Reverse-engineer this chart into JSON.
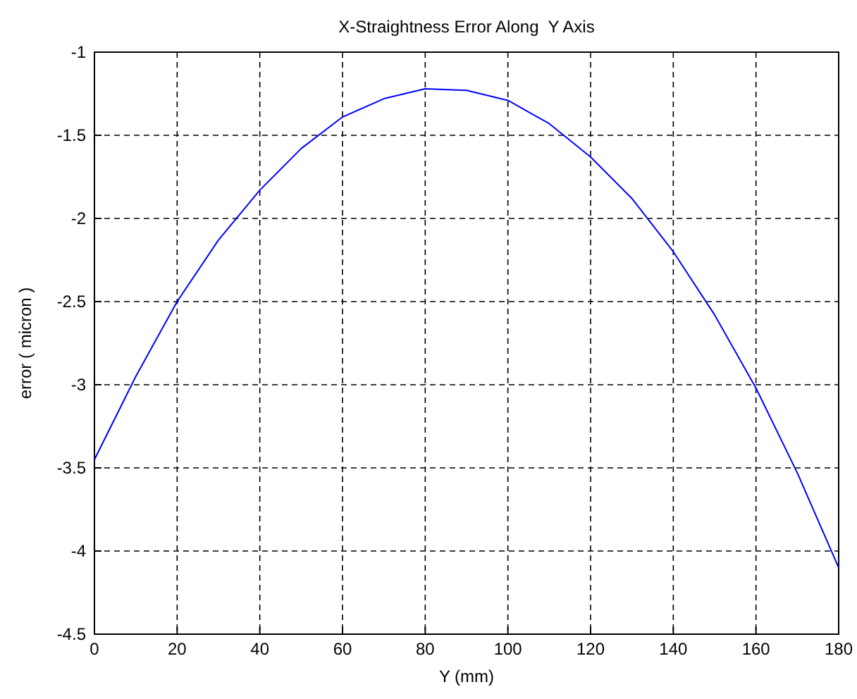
{
  "chart_data": {
    "type": "line",
    "title": "X-Straightness Error Along  Y Axis",
    "xlabel": "Y (mm)",
    "ylabel": "error ( micron )",
    "x": [
      0,
      10,
      20,
      30,
      40,
      50,
      60,
      70,
      80,
      90,
      100,
      110,
      120,
      130,
      140,
      150,
      160,
      170,
      180
    ],
    "series": [
      {
        "color": "#0000ff",
        "values": [
          -3.45,
          -2.95,
          -2.5,
          -2.13,
          -1.83,
          -1.58,
          -1.39,
          -1.28,
          -1.22,
          -1.23,
          -1.29,
          -1.43,
          -1.63,
          -1.88,
          -2.2,
          -2.58,
          -3.02,
          -3.53,
          -4.1
        ]
      }
    ],
    "xlim": [
      0,
      180
    ],
    "xticks": [
      0,
      20,
      40,
      60,
      80,
      100,
      120,
      140,
      160,
      180
    ],
    "ylim": [
      -4.5,
      -1
    ],
    "yticks": [
      -4.5,
      -4,
      -3.5,
      -3,
      -2.5,
      -2,
      -1.5,
      -1
    ],
    "grid": true,
    "line_style": "solid",
    "marker": "none"
  }
}
